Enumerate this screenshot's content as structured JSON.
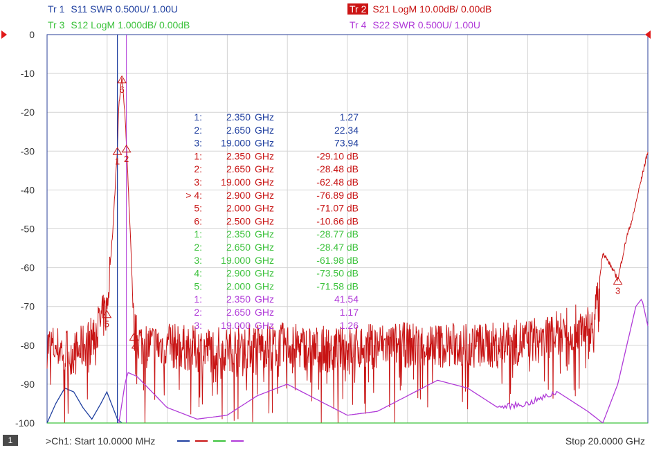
{
  "traces": [
    {
      "id": "Tr 1",
      "label": "S11 SWR 0.500U/  1.00U",
      "color": "#1f3f9f"
    },
    {
      "id": "Tr 2",
      "label": "S21 LogM 10.00dB/  0.00dB",
      "color": "#c81414"
    },
    {
      "id": "Tr 3",
      "label": "S12 LogM 1.000dB/  0.00dB",
      "color": "#3cc23c"
    },
    {
      "id": "Tr 4",
      "label": "S22 SWR 0.500U/  1.00U",
      "color": "#b03ad8"
    }
  ],
  "footer": {
    "channel_badge": "1",
    "start": ">Ch1:  Start  10.0000 MHz",
    "stop": "Stop  20.0000 GHz"
  },
  "chart_data": {
    "type": "line",
    "title": "",
    "xlabel": "",
    "ylabel": "",
    "x_unit": "GHz",
    "xlim": [
      0.01,
      20.0
    ],
    "ylim": [
      -100,
      0
    ],
    "yticks": [
      "0",
      "-10",
      "-20",
      "-30",
      "-40",
      "-50",
      "-60",
      "-70",
      "-80",
      "-90",
      "-100"
    ],
    "grid": true,
    "series": [
      {
        "name": "S11",
        "color": "#1f3f9f",
        "x": [
          0.01,
          0.3,
          0.6,
          0.9,
          1.2,
          1.5,
          1.8,
          2.0,
          2.2,
          2.35,
          2.5
        ],
        "y": [
          -100,
          -95,
          -91,
          -92,
          -96,
          -99,
          -95,
          -92,
          -96,
          -99,
          -101
        ]
      },
      {
        "name": "S21",
        "color": "#c81414",
        "x": [
          0.01,
          0.5,
          1.0,
          1.5,
          2.0,
          2.2,
          2.35,
          2.4,
          2.5,
          2.6,
          2.65,
          2.8,
          2.9,
          3.2,
          4,
          5,
          6,
          7,
          8,
          9,
          10,
          11,
          12,
          13,
          14,
          15,
          16,
          17,
          17.8,
          18.2,
          18.5,
          18.8,
          19.0,
          19.3,
          19.5,
          19.7,
          20.0
        ],
        "y": [
          -80,
          -81,
          -82,
          -78,
          -71,
          -50,
          -29,
          -18,
          -11,
          -20,
          -28,
          -55,
          -77,
          -80,
          -80,
          -81,
          -81,
          -80,
          -80,
          -81,
          -81,
          -80,
          -80,
          -80,
          -80,
          -80,
          -79,
          -77,
          -75,
          -76,
          -56,
          -60,
          -63,
          -52,
          -47,
          -40,
          -30
        ]
      },
      {
        "name": "S12",
        "color": "#3cc23c",
        "x": [
          0.01,
          20.0
        ],
        "y": [
          -100,
          -100
        ]
      },
      {
        "name": "S22",
        "color": "#b03ad8",
        "x": [
          2.4,
          2.5,
          2.6,
          2.7,
          3.0,
          3.5,
          4,
          5,
          6,
          7,
          8,
          9,
          10,
          11,
          12,
          13,
          14,
          15,
          16,
          17,
          18,
          18.5,
          19.0,
          19.3,
          19.6,
          19.8,
          20.0
        ],
        "y": [
          -100,
          -95,
          -90,
          -87,
          -88,
          -92,
          -96,
          -99,
          -98,
          -93,
          -90,
          -94,
          -98,
          -97,
          -93,
          -89,
          -91,
          -96,
          -95,
          -92,
          -97,
          -100,
          -90,
          -80,
          -70,
          -68,
          -75
        ]
      }
    ],
    "marker_table": [
      {
        "n": "1:",
        "freq": "2.350",
        "unit": "GHz",
        "value": "1.27",
        "color": "#1f3f9f"
      },
      {
        "n": "2:",
        "freq": "2.650",
        "unit": "GHz",
        "value": "22.34",
        "color": "#1f3f9f"
      },
      {
        "n": "3:",
        "freq": "19.000",
        "unit": "GHz",
        "value": "73.94",
        "color": "#1f3f9f"
      },
      {
        "n": "1:",
        "freq": "2.350",
        "unit": "GHz",
        "value": "-29.10 dB",
        "color": "#c81414"
      },
      {
        "n": "2:",
        "freq": "2.650",
        "unit": "GHz",
        "value": "-28.48 dB",
        "color": "#c81414"
      },
      {
        "n": "3:",
        "freq": "19.000",
        "unit": "GHz",
        "value": "-62.48 dB",
        "color": "#c81414"
      },
      {
        "n": "> 4:",
        "freq": "2.900",
        "unit": "GHz",
        "value": "-76.89 dB",
        "color": "#c81414"
      },
      {
        "n": "5:",
        "freq": "2.000",
        "unit": "GHz",
        "value": "-71.07 dB",
        "color": "#c81414"
      },
      {
        "n": "6:",
        "freq": "2.500",
        "unit": "GHz",
        "value": "-10.66 dB",
        "color": "#c81414"
      },
      {
        "n": "1:",
        "freq": "2.350",
        "unit": "GHz",
        "value": "-28.77 dB",
        "color": "#3cc23c"
      },
      {
        "n": "2:",
        "freq": "2.650",
        "unit": "GHz",
        "value": "-28.47 dB",
        "color": "#3cc23c"
      },
      {
        "n": "3:",
        "freq": "19.000",
        "unit": "GHz",
        "value": "-61.98 dB",
        "color": "#3cc23c"
      },
      {
        "n": "4:",
        "freq": "2.900",
        "unit": "GHz",
        "value": "-73.50 dB",
        "color": "#3cc23c"
      },
      {
        "n": "5:",
        "freq": "2.000",
        "unit": "GHz",
        "value": "-71.58 dB",
        "color": "#3cc23c"
      },
      {
        "n": "1:",
        "freq": "2.350",
        "unit": "GHz",
        "value": "41.54",
        "color": "#b03ad8"
      },
      {
        "n": "2:",
        "freq": "2.650",
        "unit": "GHz",
        "value": "1.17",
        "color": "#b03ad8"
      },
      {
        "n": "3:",
        "freq": "19.000",
        "unit": "GHz",
        "value": "1.26",
        "color": "#b03ad8"
      }
    ],
    "markers": [
      {
        "trace": "S21",
        "label": "1",
        "x": 2.35,
        "y": -29.1
      },
      {
        "trace": "S21",
        "label": "2",
        "x": 2.65,
        "y": -28.48
      },
      {
        "trace": "S21",
        "label": "3",
        "x": 19.0,
        "y": -62.48
      },
      {
        "trace": "S21",
        "label": "4",
        "x": 2.9,
        "y": -76.89
      },
      {
        "trace": "S21",
        "label": "5",
        "x": 2.0,
        "y": -71.07
      },
      {
        "trace": "S21",
        "label": "6",
        "x": 2.5,
        "y": -10.66
      }
    ]
  }
}
